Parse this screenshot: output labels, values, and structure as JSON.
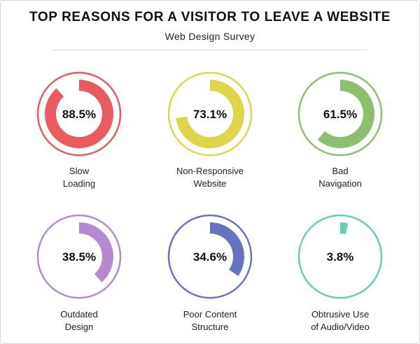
{
  "chart_data": {
    "type": "donut",
    "title": "TOP REASONS FOR A VISITOR TO LEAVE A WEBSITE",
    "subtitle": "Web Design Survey",
    "items": [
      {
        "label_lines": [
          "Slow",
          "Loading"
        ],
        "value": 88.5,
        "value_label": "88.5%",
        "color": "#ea5b5f"
      },
      {
        "label_lines": [
          "Non-Responsive",
          "Website"
        ],
        "value": 73.1,
        "value_label": "73.1%",
        "color": "#dfd54a"
      },
      {
        "label_lines": [
          "Bad",
          "Navigation"
        ],
        "value": 61.5,
        "value_label": "61.5%",
        "color": "#8cbf6e"
      },
      {
        "label_lines": [
          "Outdated",
          "Design"
        ],
        "value": 38.5,
        "value_label": "38.5%",
        "color": "#b58ad2"
      },
      {
        "label_lines": [
          "Poor Content",
          "Structure"
        ],
        "value": 34.6,
        "value_label": "34.6%",
        "color": "#6573c0"
      },
      {
        "label_lines": [
          "Obtrusive Use",
          "of Audio/Video"
        ],
        "value": 3.8,
        "value_label": "3.8%",
        "color": "#66cfb3"
      }
    ]
  }
}
